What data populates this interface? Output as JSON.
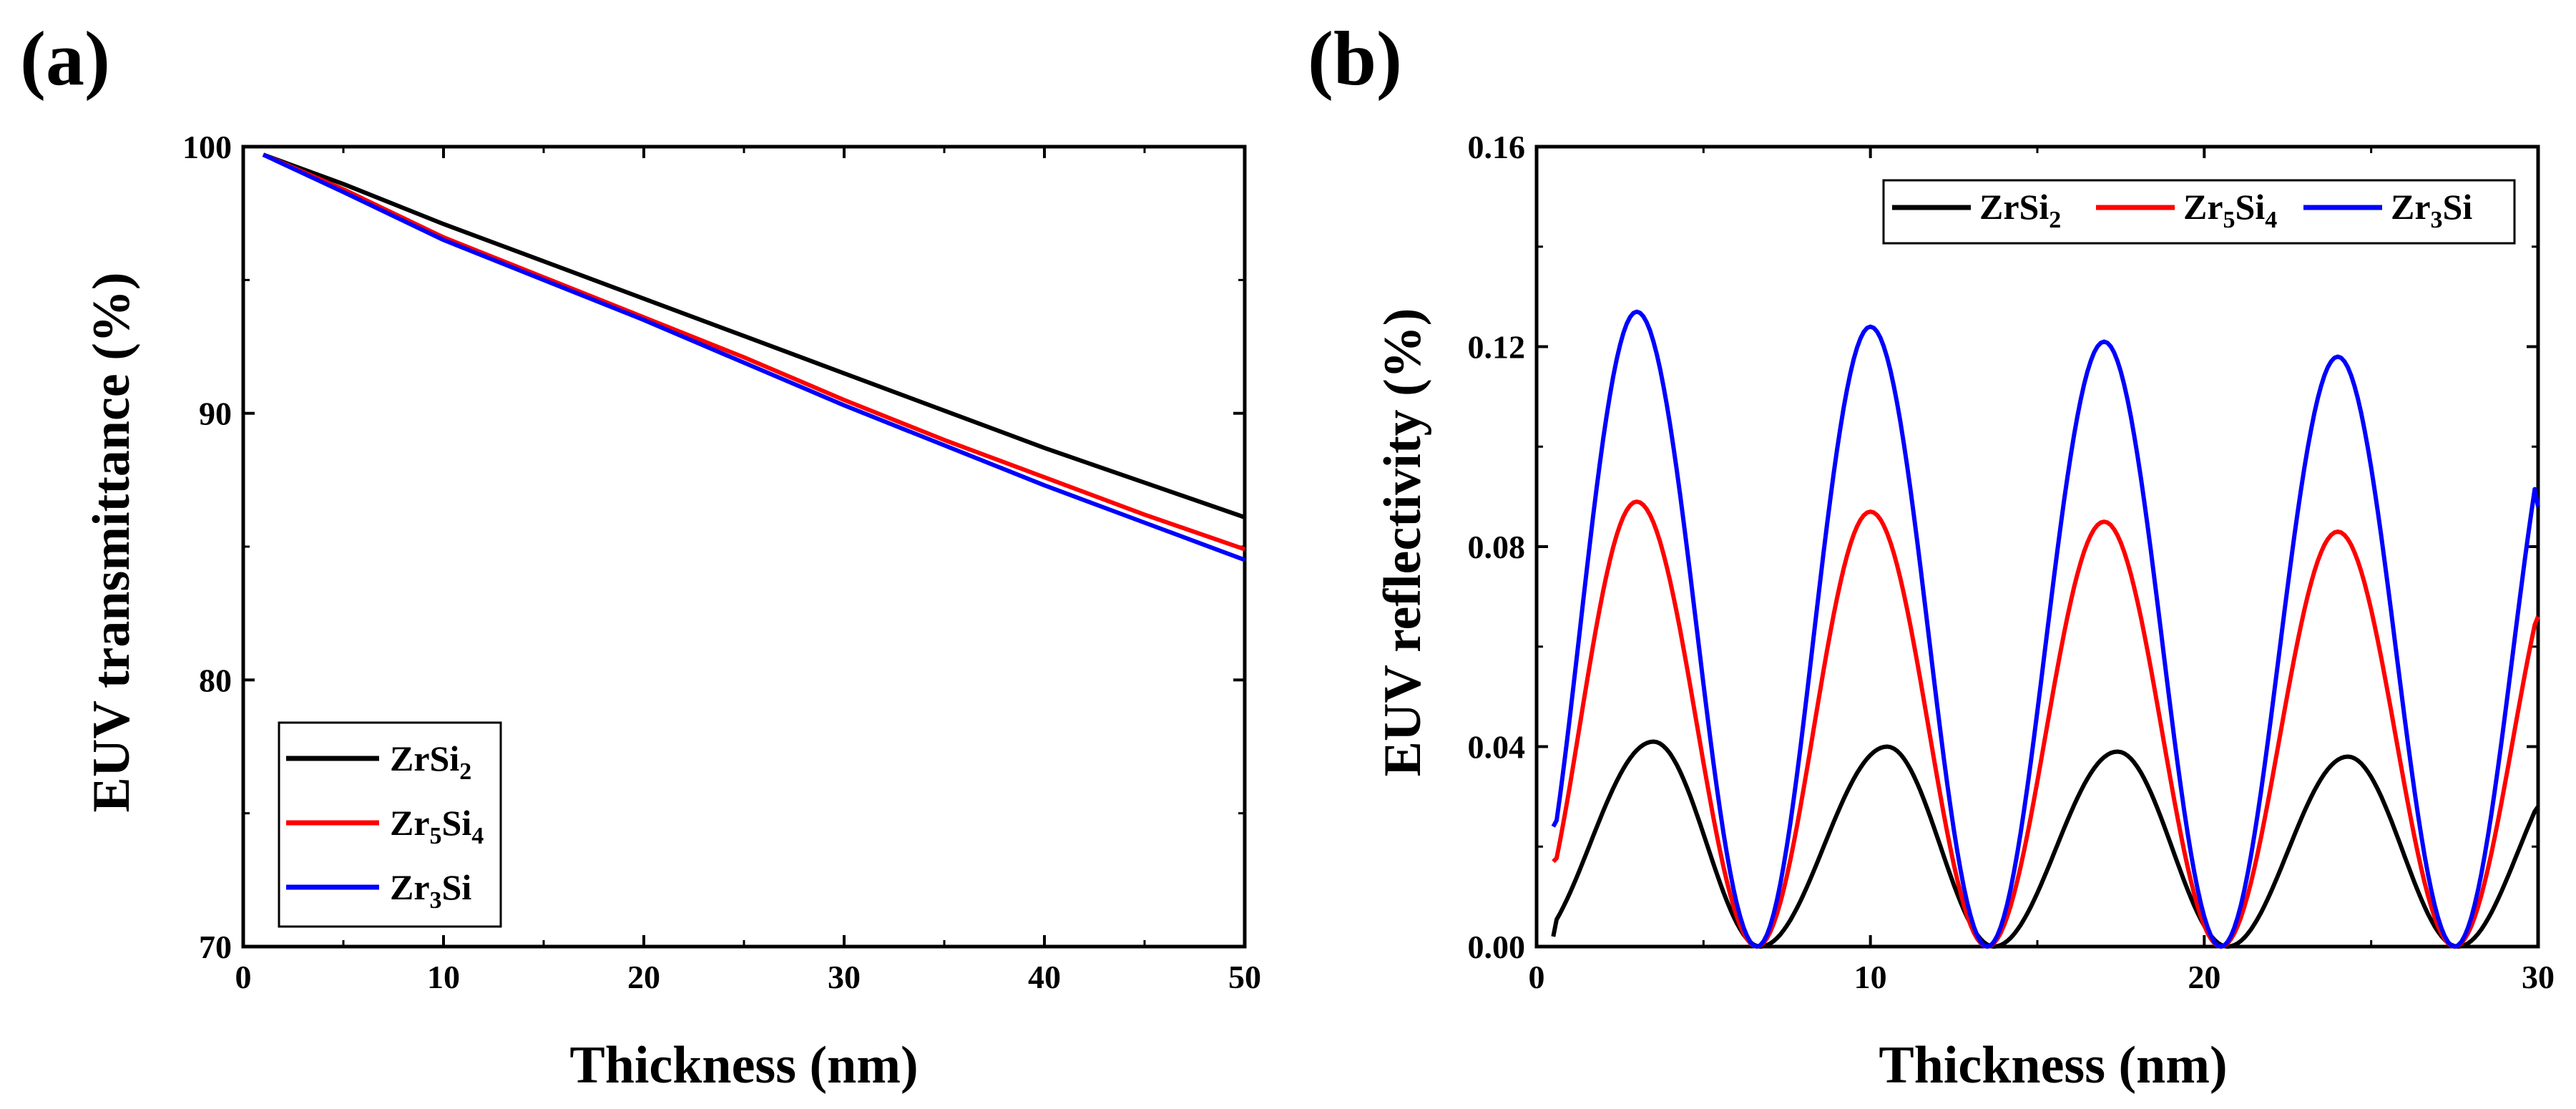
{
  "chart_data": [
    {
      "panel": "(a)",
      "type": "line",
      "title": "",
      "xlabel": "Thickness (nm)",
      "ylabel": "EUV transmittance (%)",
      "xlim": [
        0,
        50
      ],
      "ylim": [
        70,
        100
      ],
      "x_ticks": [
        0,
        10,
        20,
        30,
        40,
        50
      ],
      "y_ticks": [
        70,
        80,
        90,
        100
      ],
      "grid": false,
      "legend_position": "bottom-left",
      "colors": {
        "ZrSi2": "#000000",
        "Zr5Si4": "#ff0000",
        "Zr3Si": "#0000ff"
      },
      "x": [
        1,
        5,
        10,
        15,
        20,
        25,
        30,
        35,
        40,
        45,
        50
      ],
      "series": [
        {
          "key": "ZrSi2",
          "name": "ZrSi",
          "sub": "2",
          "tail": "",
          "values": [
            99.7,
            98.6,
            97.1,
            95.7,
            94.3,
            92.9,
            91.5,
            90.1,
            88.7,
            87.4,
            86.1
          ]
        },
        {
          "key": "Zr5Si4",
          "name": "Zr",
          "sub": "5",
          "tail": "Si",
          "sub2": "4",
          "values": [
            99.7,
            98.4,
            96.6,
            95.1,
            93.6,
            92.1,
            90.5,
            89.0,
            87.6,
            86.2,
            84.9
          ]
        },
        {
          "key": "Zr3Si",
          "name": "Zr",
          "sub": "3",
          "tail": "Si",
          "sub2": "",
          "values": [
            99.7,
            98.3,
            96.5,
            95.0,
            93.5,
            91.9,
            90.3,
            88.8,
            87.3,
            85.9,
            84.5
          ]
        }
      ]
    },
    {
      "panel": "(b)",
      "type": "line",
      "title": "",
      "xlabel": "Thickness (nm)",
      "ylabel": "EUV reflectivity (%)",
      "xlim": [
        0,
        30
      ],
      "ylim": [
        0,
        0.16
      ],
      "x_ticks": [
        0,
        10,
        20,
        30
      ],
      "y_ticks": [
        "0.00",
        "0.04",
        "0.08",
        "0.12",
        "0.16"
      ],
      "grid": false,
      "legend_position": "top-right",
      "colors": {
        "ZrSi2": "#000000",
        "Zr5Si4": "#ff0000",
        "Zr3Si": "#0000ff"
      },
      "period": 7.0,
      "x_start": 0.5,
      "x_end": 30,
      "series": [
        {
          "key": "ZrSi2",
          "name": "ZrSi",
          "sub": "2",
          "tail": "",
          "peaks": [
            {
              "x": 3.5,
              "y": 0.041
            },
            {
              "x": 10.5,
              "y": 0.04
            },
            {
              "x": 17.4,
              "y": 0.039
            },
            {
              "x": 24.3,
              "y": 0.038
            }
          ],
          "minima_x": [
            6.7,
            13.7,
            20.7,
            27.6
          ],
          "start_value": 0.002,
          "end_value": 0.028
        },
        {
          "key": "Zr5Si4",
          "name": "Zr",
          "sub": "5",
          "tail": "Si",
          "sub2": "4",
          "peaks": [
            {
              "x": 3.0,
              "y": 0.089
            },
            {
              "x": 10.0,
              "y": 0.087
            },
            {
              "x": 17.0,
              "y": 0.085
            },
            {
              "x": 24.0,
              "y": 0.083
            }
          ],
          "minima_x": [
            6.6,
            13.5,
            20.5,
            27.5
          ],
          "start_value": 0.017,
          "end_value": 0.066
        },
        {
          "key": "Zr3Si",
          "name": "Zr",
          "sub": "3",
          "tail": "Si",
          "sub2": "",
          "peaks": [
            {
              "x": 3.0,
              "y": 0.127
            },
            {
              "x": 10.0,
              "y": 0.124
            },
            {
              "x": 17.0,
              "y": 0.121
            },
            {
              "x": 24.0,
              "y": 0.118
            }
          ],
          "minima_x": [
            6.6,
            13.5,
            20.5,
            27.5
          ],
          "start_value": 0.024,
          "end_value": 0.088
        }
      ]
    }
  ]
}
